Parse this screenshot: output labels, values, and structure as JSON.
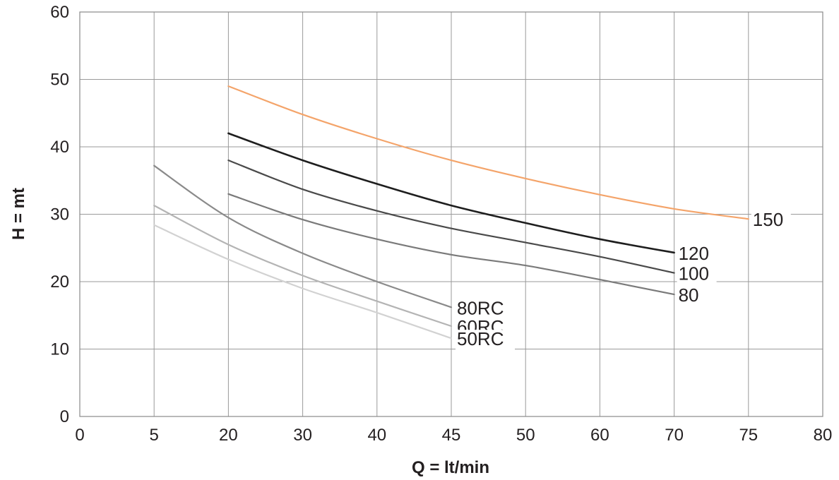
{
  "chart_data": {
    "type": "line",
    "title": "",
    "xlabel": "Q = lt/min",
    "ylabel": "H = mt",
    "grid": true,
    "legend": "none",
    "x_ticks": [
      "0",
      "5",
      "20",
      "30",
      "40",
      "45",
      "50",
      "60",
      "70",
      "75",
      "80"
    ],
    "y_ticks": [
      "0",
      "10",
      "20",
      "30",
      "40",
      "50",
      "60"
    ],
    "ylim": [
      0,
      60
    ],
    "series": [
      {
        "name": "150",
        "color": "#f4a46a",
        "x": [
          "20",
          "30",
          "40",
          "45",
          "50",
          "60",
          "70",
          "75"
        ],
        "y": [
          49,
          44.8,
          41.2,
          38,
          35.3,
          32.9,
          30.8,
          29.3
        ]
      },
      {
        "name": "120",
        "color": "#1e1e1e",
        "x": [
          "20",
          "30",
          "40",
          "45",
          "50",
          "60",
          "70"
        ],
        "y": [
          42,
          38,
          34.5,
          31.3,
          28.7,
          26.3,
          24.3
        ]
      },
      {
        "name": "100",
        "color": "#4a4a4a",
        "x": [
          "20",
          "30",
          "40",
          "45",
          "50",
          "60",
          "70"
        ],
        "y": [
          38,
          33.7,
          30.5,
          27.9,
          25.8,
          23.7,
          21.3
        ]
      },
      {
        "name": "80",
        "color": "#7a7a7a",
        "x": [
          "20",
          "30",
          "40",
          "45",
          "50",
          "60",
          "70"
        ],
        "y": [
          33,
          29.2,
          26.3,
          24,
          22.4,
          20.3,
          18.1
        ]
      },
      {
        "name": "80RC",
        "color": "#8a8a8a",
        "x": [
          "5",
          "20",
          "30",
          "40",
          "45"
        ],
        "y": [
          37.2,
          29.5,
          24.2,
          20.0,
          16.2
        ]
      },
      {
        "name": "60RC",
        "color": "#b4b4b4",
        "x": [
          "5",
          "20",
          "30",
          "40",
          "45"
        ],
        "y": [
          31.3,
          25.5,
          20.9,
          17.1,
          13.4
        ]
      },
      {
        "name": "50RC",
        "color": "#d2d2d2",
        "x": [
          "5",
          "20",
          "30",
          "40",
          "45"
        ],
        "y": [
          28.4,
          23.3,
          19.0,
          15.4,
          11.6
        ]
      }
    ]
  }
}
